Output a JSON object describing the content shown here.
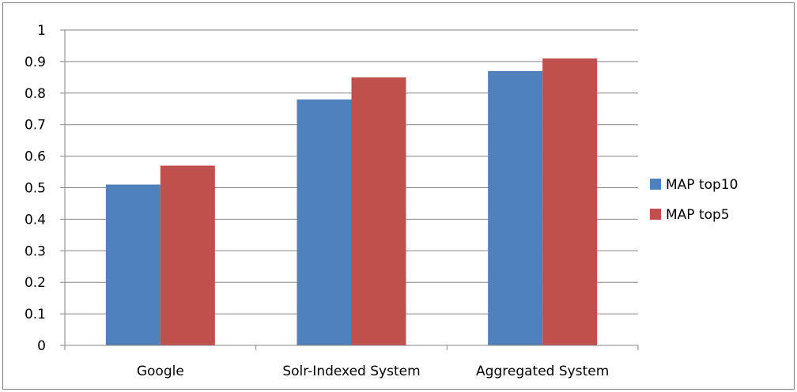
{
  "chart_data": {
    "type": "bar",
    "categories": [
      "Google",
      "Solr-Indexed System",
      "Aggregated  System"
    ],
    "series": [
      {
        "name": "MAP top10",
        "color": "#4f81bd",
        "values": [
          0.51,
          0.78,
          0.87
        ]
      },
      {
        "name": "MAP top5",
        "color": "#c0504d",
        "values": [
          0.57,
          0.85,
          0.91
        ]
      }
    ],
    "ylim": [
      0,
      1
    ],
    "yticks": [
      "0",
      "0.1",
      "0.2",
      "0.3",
      "0.4",
      "0.5",
      "0.6",
      "0.7",
      "0.8",
      "0.9",
      "1"
    ],
    "grid": true,
    "legend_position": "right",
    "title": "",
    "xlabel": "",
    "ylabel": ""
  }
}
